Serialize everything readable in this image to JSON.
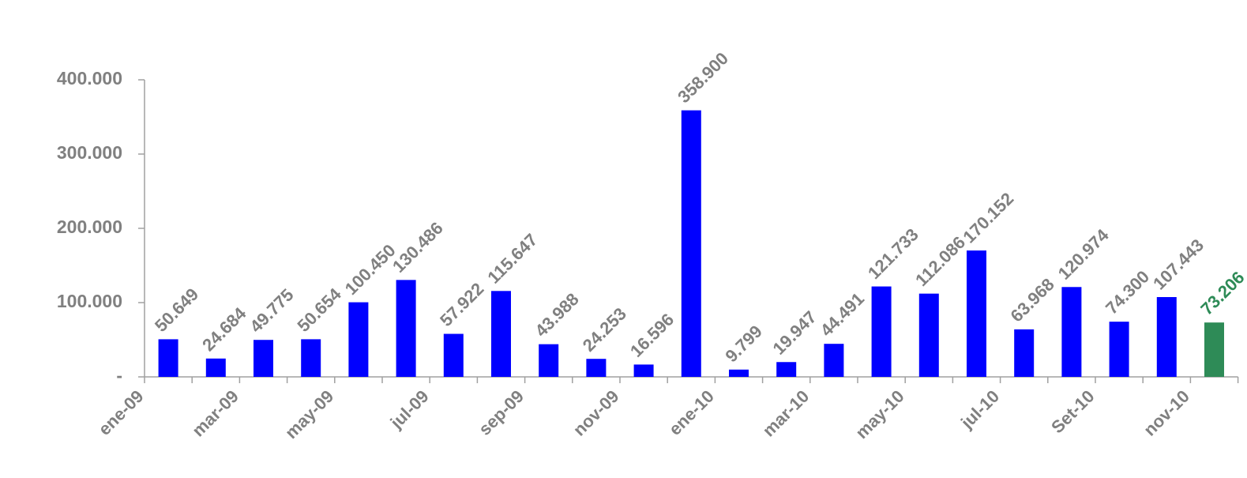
{
  "chart_data": {
    "type": "bar",
    "categories": [
      "ene-09",
      null,
      "mar-09",
      null,
      "may-09",
      null,
      "jul-09",
      null,
      "sep-09",
      null,
      "nov-09",
      null,
      "ene-10",
      null,
      "mar-10",
      null,
      "may-10",
      null,
      "jul-10",
      null,
      "Set-10",
      null,
      "nov-10"
    ],
    "values": [
      50649,
      24684,
      49775,
      50654,
      100450,
      130486,
      57922,
      115647,
      43988,
      24253,
      16596,
      358900,
      9799,
      19947,
      44491,
      121733,
      112086,
      170152,
      63968,
      120974,
      74300,
      107443,
      73206
    ],
    "value_labels": [
      "50.649",
      "24.684",
      "49.775",
      "50.654",
      "100.450",
      "130.486",
      "57.922",
      "115.647",
      "43.988",
      "24.253",
      "16.596",
      "358.900",
      "9.799",
      "19.947",
      "44.491",
      "121.733",
      "112.086",
      "170.152",
      "63.968",
      "120.974",
      "74.300",
      "107.443",
      "73.206"
    ],
    "colors": [
      "#0000ff",
      "#0000ff",
      "#0000ff",
      "#0000ff",
      "#0000ff",
      "#0000ff",
      "#0000ff",
      "#0000ff",
      "#0000ff",
      "#0000ff",
      "#0000ff",
      "#0000ff",
      "#0000ff",
      "#0000ff",
      "#0000ff",
      "#0000ff",
      "#0000ff",
      "#0000ff",
      "#0000ff",
      "#0000ff",
      "#0000ff",
      "#0000ff",
      "#2e8b57"
    ],
    "value_label_colors": [
      "#808080",
      "#808080",
      "#808080",
      "#808080",
      "#808080",
      "#808080",
      "#808080",
      "#808080",
      "#808080",
      "#808080",
      "#808080",
      "#808080",
      "#808080",
      "#808080",
      "#808080",
      "#808080",
      "#808080",
      "#808080",
      "#808080",
      "#808080",
      "#808080",
      "#808080",
      "#2e8b57"
    ],
    "ylim": [
      0,
      400000
    ],
    "yticks": [
      {
        "value": 0,
        "label": "-"
      },
      {
        "value": 100000,
        "label": "100.000"
      },
      {
        "value": 200000,
        "label": "200.000"
      },
      {
        "value": 300000,
        "label": "300.000"
      },
      {
        "value": 400000,
        "label": "400.000"
      }
    ],
    "grid": false
  }
}
